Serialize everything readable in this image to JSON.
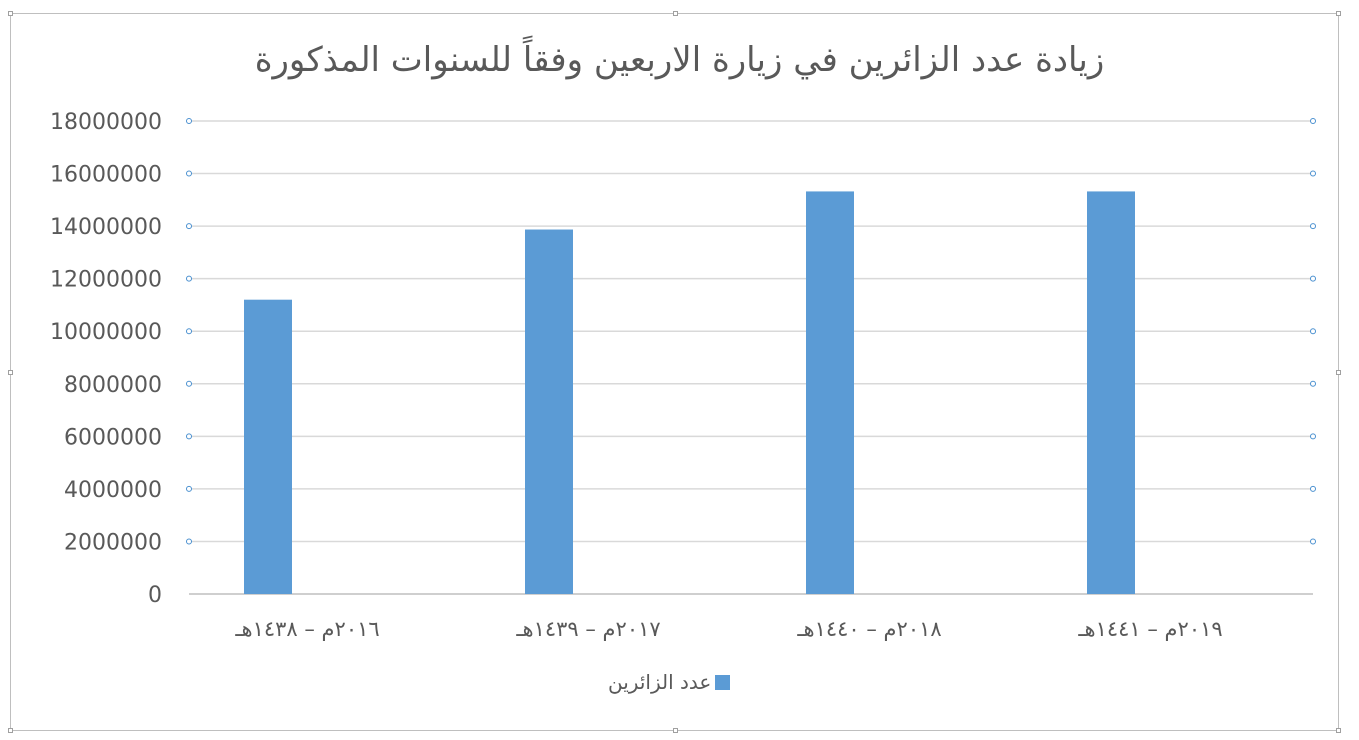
{
  "chart_data": {
    "type": "bar",
    "title": "زيادة عدد الزائرين في زيارة الاربعين وفقاً للسنوات المذكورة",
    "categories": [
      "٢٠١٦م – ١٤٣٨هـ",
      "٢٠١٧م – ١٤٣٩هـ",
      "٢٠١٨م – ١٤٤٠هـ",
      "٢٠١٩م – ١٤٤١هـ"
    ],
    "series": [
      {
        "name": "عدد الزائرين",
        "values": [
          11200000,
          13870000,
          15320000,
          15320000
        ],
        "color": "#5b9bd5"
      }
    ],
    "ylim": [
      0,
      18000000
    ],
    "yticks": [
      "0",
      "2000000",
      "4000000",
      "6000000",
      "8000000",
      "10000000",
      "12000000",
      "14000000",
      "16000000",
      "18000000"
    ],
    "grid": true,
    "legend_position": "bottom",
    "xlabel": "",
    "ylabel": ""
  }
}
